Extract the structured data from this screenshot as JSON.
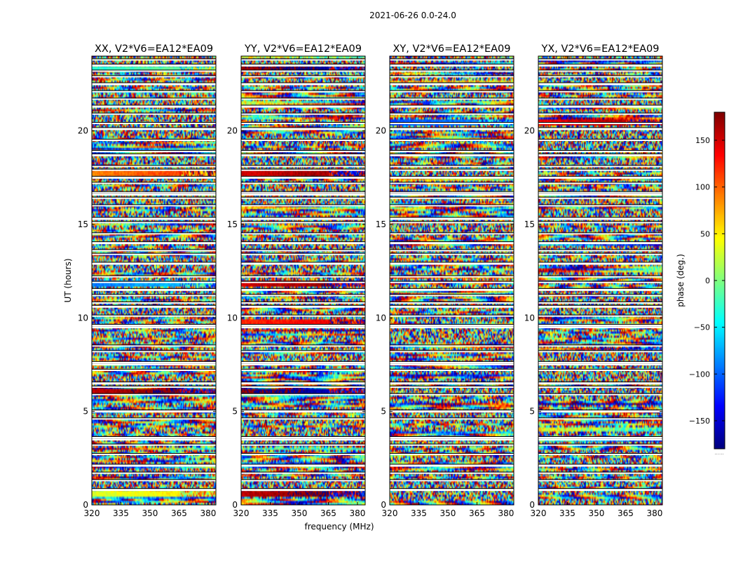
{
  "chart_data": {
    "type": "heatmap",
    "suptitle": "2021-06-26 0.0-24.0",
    "xlabel": "frequency (MHz)",
    "ylabel": "UT (hours)",
    "colorbar_label": "phase (deg.)",
    "colormap": "jet",
    "color_range": [
      -180,
      180
    ],
    "colorbar_ticks": [
      "150",
      "100",
      "50",
      "0",
      "−50",
      "−100",
      "−150"
    ],
    "colorbar_tick_values": [
      150,
      100,
      50,
      0,
      -50,
      -100,
      -150
    ],
    "xlim": [
      320,
      384
    ],
    "ylim": [
      0,
      24
    ],
    "x_ticks": [
      "320",
      "335",
      "350",
      "365",
      "380"
    ],
    "x_tick_values": [
      320,
      335,
      350,
      365,
      380
    ],
    "y_ticks": [
      "0",
      "5",
      "10",
      "15",
      "20"
    ],
    "y_tick_values": [
      0,
      5,
      10,
      15,
      20
    ],
    "colorbar_footer": "......",
    "panels": [
      {
        "title": "XX, V2*V6=EA12*EA09",
        "pattern": "noisy phase with coherent bands"
      },
      {
        "title": "YY, V2*V6=EA12*EA09",
        "pattern": "noisy phase with coherent bands"
      },
      {
        "title": "XY, V2*V6=EA12*EA09",
        "pattern": "noisy phase"
      },
      {
        "title": "YX, V2*V6=EA12*EA09",
        "pattern": "noisy phase"
      }
    ],
    "flagged_gaps_ut": [
      0.8,
      1.3,
      1.7,
      2.1,
      2.7,
      3.2,
      3.5,
      3.6,
      4.6,
      5.0,
      5.9,
      6.3,
      6.5,
      7.2,
      7.5,
      7.6,
      8.2,
      8.5,
      9.5,
      9.6,
      10.1,
      10.6,
      10.8,
      11.2,
      11.5,
      11.9,
      12.2,
      12.9,
      13.4,
      13.6,
      14.0,
      14.5,
      15.1,
      15.3,
      16.0,
      16.4,
      16.6,
      16.7,
      17.2,
      17.5,
      17.9,
      18.1,
      18.7,
      18.9,
      19.5,
      20.1,
      20.4,
      20.9,
      21.3,
      21.7,
      22.1,
      22.5,
      22.9,
      23.2,
      23.5,
      23.8
    ],
    "coherent_bands_ut": {
      "XX": [
        [
          0.4,
          0.8,
          30
        ],
        [
          5.9,
          6.2,
          160
        ],
        [
          11.7,
          12.0,
          -90
        ],
        [
          17.6,
          17.9,
          90
        ],
        [
          23.2,
          23.5,
          -30
        ]
      ],
      "YY": [
        [
          0.4,
          0.8,
          160
        ],
        [
          5.9,
          6.2,
          175
        ],
        [
          9.6,
          9.9,
          120
        ],
        [
          11.7,
          12.0,
          150
        ],
        [
          17.6,
          17.9,
          150
        ],
        [
          23.2,
          23.5,
          170
        ]
      ],
      "XY": [
        [
          20.3,
          20.6,
          -110
        ]
      ],
      "YX": [
        [
          20.3,
          20.6,
          140
        ]
      ]
    }
  }
}
